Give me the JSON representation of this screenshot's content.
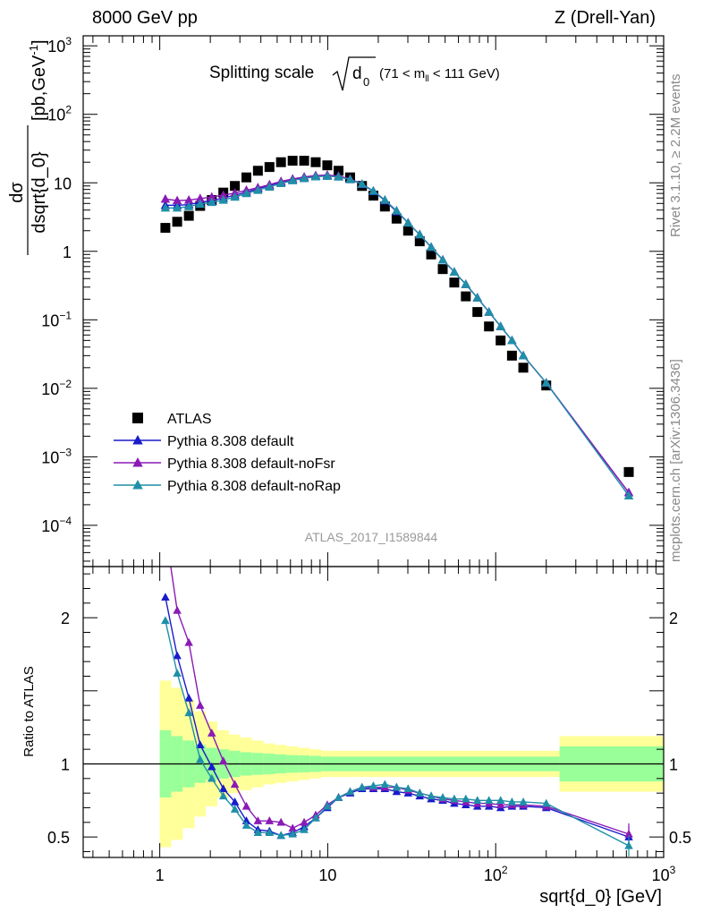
{
  "header": {
    "left": "8000 GeV pp",
    "right": "Z (Drell-Yan)"
  },
  "side_labels": {
    "rivet": "Rivet 3.1.10, ≥ 2.2M events",
    "mcplots": "mcplots.cern.ch [arXiv:1306.3436]"
  },
  "chart_data": {
    "type": "line",
    "title": {
      "main": "Splitting scale",
      "symbol": "d",
      "subscript": "0",
      "cut_open": "(71 < m",
      "cut_sub": "ll",
      "cut_close": " < 111 GeV)"
    },
    "analysis_id": "ATLAS_2017_I1589844",
    "xscale": "log",
    "xlim": [
      0.35,
      1000
    ],
    "xlabel": "sqrt{d_0} [GeV]",
    "x_ticks": [
      {
        "value": 1,
        "label": "1"
      },
      {
        "value": 10,
        "label": "10"
      },
      {
        "value": 100,
        "label": "10",
        "exp": "2"
      },
      {
        "value": 1000,
        "label": "10",
        "exp": "3"
      }
    ],
    "main": {
      "yscale": "log",
      "ylim": [
        2.5e-05,
        1400
      ],
      "ylabel_num": "dσ",
      "ylabel_den": "dsqrt{d_0}",
      "ylabel_units": "[pb,GeV",
      "ylabel_units_exp": "-1",
      "ylabel_units_close": "]",
      "y_ticks": [
        {
          "value": 0.0001,
          "label": "10",
          "exp": "−4"
        },
        {
          "value": 0.001,
          "label": "10",
          "exp": "−3"
        },
        {
          "value": 0.01,
          "label": "10",
          "exp": "−2"
        },
        {
          "value": 0.1,
          "label": "10",
          "exp": "−1"
        },
        {
          "value": 1,
          "label": "1"
        },
        {
          "value": 10,
          "label": "10"
        },
        {
          "value": 100,
          "label": "10",
          "exp": "2"
        },
        {
          "value": 1000,
          "label": "10",
          "exp": "3"
        }
      ]
    },
    "ratio": {
      "ylim": [
        0.36,
        2.35
      ],
      "ylabel": "Ratio to ATLAS",
      "y_ticks": [
        {
          "value": 0.5,
          "label": "0.5"
        },
        {
          "value": 1,
          "label": "1"
        },
        {
          "value": 2,
          "label": "2"
        }
      ],
      "band_bins": [
        {
          "lo": 1.0,
          "hi": 1.17,
          "stat": 0.23,
          "tot": 0.57
        },
        {
          "lo": 1.17,
          "hi": 1.37,
          "stat": 0.19,
          "tot": 0.52
        },
        {
          "lo": 1.37,
          "hi": 1.61,
          "stat": 0.16,
          "tot": 0.44
        },
        {
          "lo": 1.61,
          "hi": 1.88,
          "stat": 0.13,
          "tot": 0.36
        },
        {
          "lo": 1.88,
          "hi": 2.2,
          "stat": 0.11,
          "tot": 0.29
        },
        {
          "lo": 2.2,
          "hi": 2.58,
          "stat": 0.1,
          "tot": 0.23
        },
        {
          "lo": 2.58,
          "hi": 3.02,
          "stat": 0.09,
          "tot": 0.2
        },
        {
          "lo": 3.02,
          "hi": 3.54,
          "stat": 0.08,
          "tot": 0.18
        },
        {
          "lo": 3.54,
          "hi": 4.15,
          "stat": 0.075,
          "tot": 0.16
        },
        {
          "lo": 4.15,
          "hi": 4.86,
          "stat": 0.07,
          "tot": 0.14
        },
        {
          "lo": 4.86,
          "hi": 5.69,
          "stat": 0.065,
          "tot": 0.13
        },
        {
          "lo": 5.69,
          "hi": 6.67,
          "stat": 0.06,
          "tot": 0.12
        },
        {
          "lo": 6.67,
          "hi": 7.81,
          "stat": 0.058,
          "tot": 0.11
        },
        {
          "lo": 7.81,
          "hi": 9.15,
          "stat": 0.055,
          "tot": 0.1
        },
        {
          "lo": 9.15,
          "hi": 240,
          "stat": 0.05,
          "tot": 0.09
        },
        {
          "lo": 240,
          "hi": 1000,
          "stat": 0.12,
          "tot": 0.19
        }
      ]
    },
    "series": [
      {
        "name": "ATLAS",
        "color": "#000000",
        "marker": "square",
        "x": [
          1.08,
          1.27,
          1.49,
          1.74,
          2.04,
          2.39,
          2.8,
          3.28,
          3.84,
          4.5,
          5.27,
          6.18,
          7.24,
          8.48,
          9.94,
          11.6,
          13.6,
          16.0,
          18.7,
          21.9,
          25.7,
          30.1,
          35.3,
          41.3,
          48.4,
          56.7,
          66.4,
          77.8,
          91.2,
          107,
          125,
          146,
          200,
          620
        ],
        "y": [
          2.2,
          2.7,
          3.3,
          4.6,
          5.6,
          7.2,
          9.0,
          12,
          15,
          17,
          20,
          21,
          21,
          20,
          18,
          15,
          12,
          9.0,
          6.5,
          4.5,
          3.0,
          2.0,
          1.4,
          0.9,
          0.55,
          0.35,
          0.22,
          0.13,
          0.08,
          0.05,
          0.03,
          0.02,
          0.011,
          0.0006
        ]
      },
      {
        "name": "Pythia 8.308 default",
        "color": "#1a1acc",
        "marker": "triangle",
        "x": [
          1.08,
          1.27,
          1.49,
          1.74,
          2.04,
          2.39,
          2.8,
          3.28,
          3.84,
          4.5,
          5.27,
          6.18,
          7.24,
          8.48,
          9.94,
          11.6,
          13.6,
          16.0,
          18.7,
          21.9,
          25.7,
          30.1,
          35.3,
          41.3,
          48.4,
          56.7,
          66.4,
          77.8,
          91.2,
          107,
          125,
          146,
          200,
          620
        ],
        "y": [
          4.7,
          4.7,
          4.8,
          5.2,
          5.5,
          6.0,
          6.6,
          7.3,
          8.2,
          9.1,
          10.2,
          11.2,
          12.0,
          12.6,
          12.7,
          12.3,
          11.2,
          9.5,
          7.5,
          5.5,
          3.8,
          2.6,
          1.75,
          1.15,
          0.75,
          0.5,
          0.33,
          0.21,
          0.13,
          0.08,
          0.05,
          0.03,
          0.012,
          0.0003
        ],
        "ratio": [
          2.14,
          1.74,
          1.45,
          1.13,
          0.98,
          0.83,
          0.74,
          0.61,
          0.55,
          0.54,
          0.51,
          0.53,
          0.57,
          0.63,
          0.7,
          0.77,
          0.8,
          0.83,
          0.83,
          0.83,
          0.81,
          0.8,
          0.78,
          0.76,
          0.75,
          0.73,
          0.72,
          0.71,
          0.71,
          0.7,
          0.71,
          0.71,
          0.7,
          0.5
        ]
      },
      {
        "name": "Pythia 8.308 default-noFsr",
        "color": "#8a1ab5",
        "marker": "triangle",
        "x": [
          1.08,
          1.27,
          1.49,
          1.74,
          2.04,
          2.39,
          2.8,
          3.28,
          3.84,
          4.5,
          5.27,
          6.18,
          7.24,
          8.48,
          9.94,
          11.6,
          13.6,
          16.0,
          18.7,
          21.9,
          25.7,
          30.1,
          35.3,
          41.3,
          48.4,
          56.7,
          66.4,
          77.8,
          91.2,
          107,
          125,
          146,
          200,
          620
        ],
        "y": [
          5.8,
          5.5,
          5.6,
          5.9,
          6.2,
          6.6,
          7.1,
          7.8,
          8.5,
          9.4,
          10.5,
          11.4,
          12.2,
          12.8,
          13.0,
          12.6,
          11.4,
          9.6,
          7.6,
          5.6,
          3.9,
          2.6,
          1.75,
          1.15,
          0.75,
          0.5,
          0.33,
          0.21,
          0.13,
          0.08,
          0.05,
          0.03,
          0.012,
          0.0003
        ],
        "ratio": [
          2.6,
          2.05,
          1.83,
          1.4,
          1.21,
          1.02,
          0.86,
          0.71,
          0.61,
          0.61,
          0.6,
          0.56,
          0.6,
          0.65,
          0.72,
          0.77,
          0.81,
          0.84,
          0.84,
          0.84,
          0.84,
          0.82,
          0.8,
          0.78,
          0.76,
          0.75,
          0.74,
          0.73,
          0.73,
          0.72,
          0.72,
          0.72,
          0.71,
          0.52
        ]
      },
      {
        "name": "Pythia 8.308 default-noRap",
        "color": "#1f8fa8",
        "marker": "triangle",
        "x": [
          1.08,
          1.27,
          1.49,
          1.74,
          2.04,
          2.39,
          2.8,
          3.28,
          3.84,
          4.5,
          5.27,
          6.18,
          7.24,
          8.48,
          9.94,
          11.6,
          13.6,
          16.0,
          18.7,
          21.9,
          25.7,
          30.1,
          35.3,
          41.3,
          48.4,
          56.7,
          66.4,
          77.8,
          91.2,
          107,
          125,
          146,
          200,
          620
        ],
        "y": [
          4.3,
          4.3,
          4.5,
          4.9,
          5.2,
          5.6,
          6.2,
          7.0,
          7.8,
          8.7,
          9.8,
          10.8,
          11.6,
          12.3,
          12.5,
          12.2,
          11.2,
          9.6,
          7.6,
          5.6,
          3.9,
          2.6,
          1.75,
          1.15,
          0.75,
          0.5,
          0.33,
          0.21,
          0.13,
          0.08,
          0.05,
          0.03,
          0.012,
          0.00027
        ],
        "ratio": [
          1.98,
          1.62,
          1.35,
          1.03,
          0.9,
          0.78,
          0.69,
          0.58,
          0.53,
          0.53,
          0.51,
          0.52,
          0.55,
          0.63,
          0.71,
          0.77,
          0.81,
          0.84,
          0.85,
          0.86,
          0.84,
          0.83,
          0.8,
          0.78,
          0.77,
          0.76,
          0.76,
          0.75,
          0.75,
          0.75,
          0.74,
          0.74,
          0.73,
          0.44
        ]
      }
    ]
  }
}
